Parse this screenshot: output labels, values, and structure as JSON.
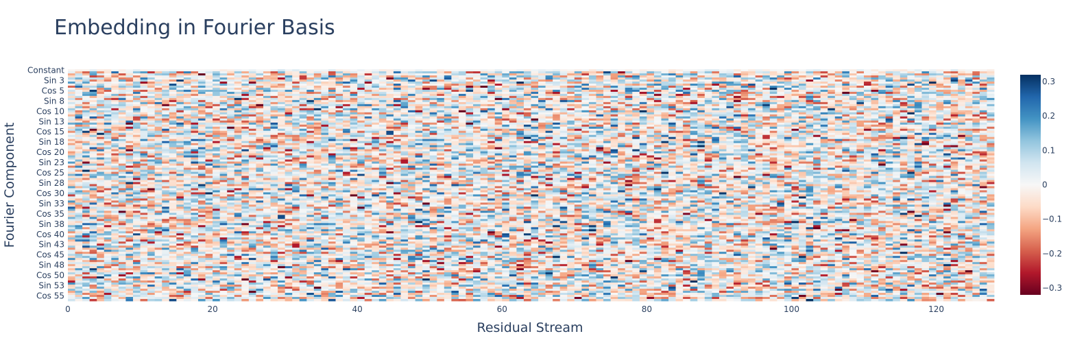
{
  "chart_data": {
    "type": "heatmap",
    "title": "Embedding in Fourier Basis",
    "xlabel": "Residual Stream",
    "ylabel": "Fourier Component",
    "n_cols": 128,
    "n_rows": 113,
    "xlim": [
      0,
      127
    ],
    "x_ticks": [
      0,
      20,
      40,
      60,
      80,
      100,
      120
    ],
    "y_ticks": [
      {
        "index": 0,
        "label": "Constant"
      },
      {
        "index": 5,
        "label": "Sin 3"
      },
      {
        "index": 10,
        "label": "Cos 5"
      },
      {
        "index": 15,
        "label": "Sin 8"
      },
      {
        "index": 20,
        "label": "Cos 10"
      },
      {
        "index": 25,
        "label": "Sin 13"
      },
      {
        "index": 30,
        "label": "Cos 15"
      },
      {
        "index": 35,
        "label": "Sin 18"
      },
      {
        "index": 40,
        "label": "Cos 20"
      },
      {
        "index": 45,
        "label": "Sin 23"
      },
      {
        "index": 50,
        "label": "Cos 25"
      },
      {
        "index": 55,
        "label": "Sin 28"
      },
      {
        "index": 60,
        "label": "Cos 30"
      },
      {
        "index": 65,
        "label": "Sin 33"
      },
      {
        "index": 70,
        "label": "Cos 35"
      },
      {
        "index": 75,
        "label": "Sin 38"
      },
      {
        "index": 80,
        "label": "Cos 40"
      },
      {
        "index": 85,
        "label": "Sin 43"
      },
      {
        "index": 90,
        "label": "Cos 45"
      },
      {
        "index": 95,
        "label": "Sin 48"
      },
      {
        "index": 100,
        "label": "Cos 50"
      },
      {
        "index": 105,
        "label": "Sin 53"
      },
      {
        "index": 110,
        "label": "Cos 55"
      }
    ],
    "colorscale": "RdBu",
    "zlim": [
      -0.32,
      0.32
    ],
    "colorbar_ticks": [
      {
        "value": 0.3,
        "label": "0.3"
      },
      {
        "value": 0.2,
        "label": "0.2"
      },
      {
        "value": 0.1,
        "label": "0.1"
      },
      {
        "value": 0,
        "label": "0"
      },
      {
        "value": -0.1,
        "label": "−0.1"
      },
      {
        "value": -0.2,
        "label": "−0.2"
      },
      {
        "value": -0.3,
        "label": "−0.3"
      }
    ],
    "colors": {
      "text": "#2a3f5f",
      "scale": [
        "#67001f",
        "#b2182b",
        "#d6604d",
        "#f4a582",
        "#fddbc7",
        "#f7f7f7",
        "#d1e5f0",
        "#92c5de",
        "#4393c3",
        "#2166ac",
        "#053061"
      ]
    },
    "values_note": "Dense 113x128 matrix of near-random values roughly in [-0.3, 0.3]; individual cells not legible."
  }
}
